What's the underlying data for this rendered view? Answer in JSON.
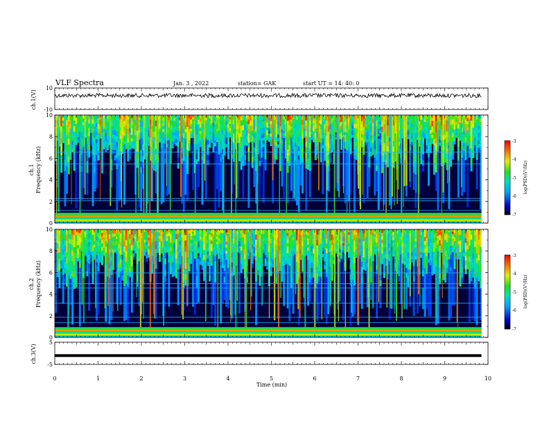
{
  "header": {
    "title": "VLF Spectra",
    "date": "Jan. 3 , 2022",
    "station": "station= GAK",
    "start_ut": "start UT =   14: 40: 0"
  },
  "chart_data": [
    {
      "id": "ch1-waveform",
      "type": "line",
      "ylabel": "ch.1(V)",
      "ylim": [
        -10,
        10
      ],
      "yticks": [
        "10",
        "-10"
      ],
      "xlim": [
        0,
        10
      ],
      "baseline": 3
    },
    {
      "id": "ch1-spectrogram",
      "type": "heatmap",
      "ylabel_line1": "ch.1",
      "ylabel_line2": "Frequency (kHz)",
      "ylim": [
        0,
        10
      ],
      "yticks": [
        "0",
        "2",
        "4",
        "6",
        "8",
        "10"
      ],
      "xlim": [
        0,
        10
      ],
      "colorbar": {
        "label": "log(PSD)(V²/Hz)",
        "range": [
          -7,
          -3
        ],
        "ticks": [
          "-3",
          "-4",
          "-5",
          "-6",
          "-7"
        ]
      }
    },
    {
      "id": "ch2-spectrogram",
      "type": "heatmap",
      "ylabel_line1": "ch.2",
      "ylabel_line2": "Frequency (kHz)",
      "ylim": [
        0,
        10
      ],
      "yticks": [
        "0",
        "2",
        "4",
        "6",
        "8",
        "10"
      ],
      "xlim": [
        0,
        10
      ],
      "colorbar": {
        "label": "log(PSD)(V²/Hz)",
        "range": [
          -7,
          -3
        ],
        "ticks": [
          "-3",
          "-4",
          "-5",
          "-6",
          "-7"
        ]
      }
    },
    {
      "id": "ch3-waveform",
      "type": "line",
      "ylabel": "ch.3(V)",
      "ylim": [
        -5,
        5
      ],
      "yticks": [
        "5",
        "-5"
      ],
      "xlim": [
        0,
        10
      ],
      "baseline": -1
    }
  ],
  "xaxis": {
    "label": "Time (min)",
    "ticks": [
      "0",
      "1",
      "2",
      "3",
      "4",
      "5",
      "6",
      "7",
      "8",
      "9",
      "10"
    ]
  }
}
